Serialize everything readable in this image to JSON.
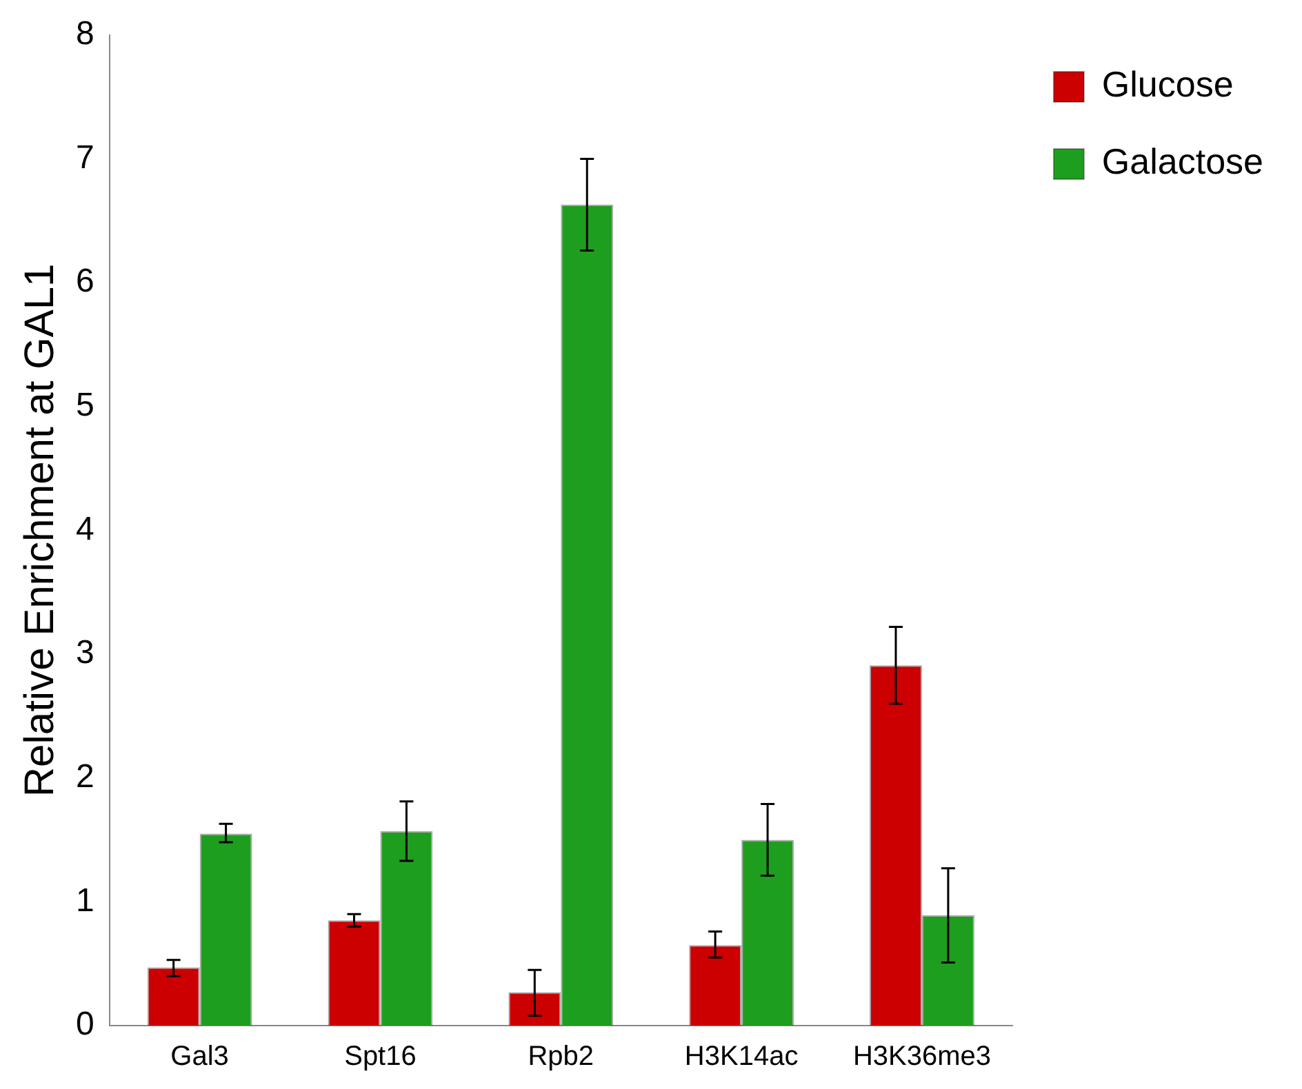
{
  "chart_data": {
    "type": "bar",
    "ylabel": "Relative Enrichment at GAL1",
    "categories": [
      "Gal3",
      "Spt16",
      "Rpb2",
      "H3K14ac",
      "H3K36me3"
    ],
    "series": [
      {
        "name": "Glucose",
        "color": "#cc0000",
        "values": [
          0.47,
          0.85,
          0.27,
          0.65,
          2.91
        ],
        "errors": [
          [
            0.4,
            0.53
          ],
          [
            0.8,
            0.9
          ],
          [
            0.08,
            0.45
          ],
          [
            0.55,
            0.76
          ],
          [
            2.6,
            3.22
          ]
        ]
      },
      {
        "name": "Galactose",
        "color": "#1e9e1e",
        "values": [
          1.55,
          1.57,
          6.63,
          1.5,
          0.89
        ],
        "errors": [
          [
            1.48,
            1.63
          ],
          [
            1.33,
            1.81
          ],
          [
            6.26,
            7.0
          ],
          [
            1.21,
            1.79
          ],
          [
            0.51,
            1.27
          ]
        ]
      }
    ],
    "ylim": [
      0,
      8
    ],
    "yticks": [
      0,
      1,
      2,
      3,
      4,
      5,
      6,
      7,
      8
    ],
    "legend": "top right"
  }
}
